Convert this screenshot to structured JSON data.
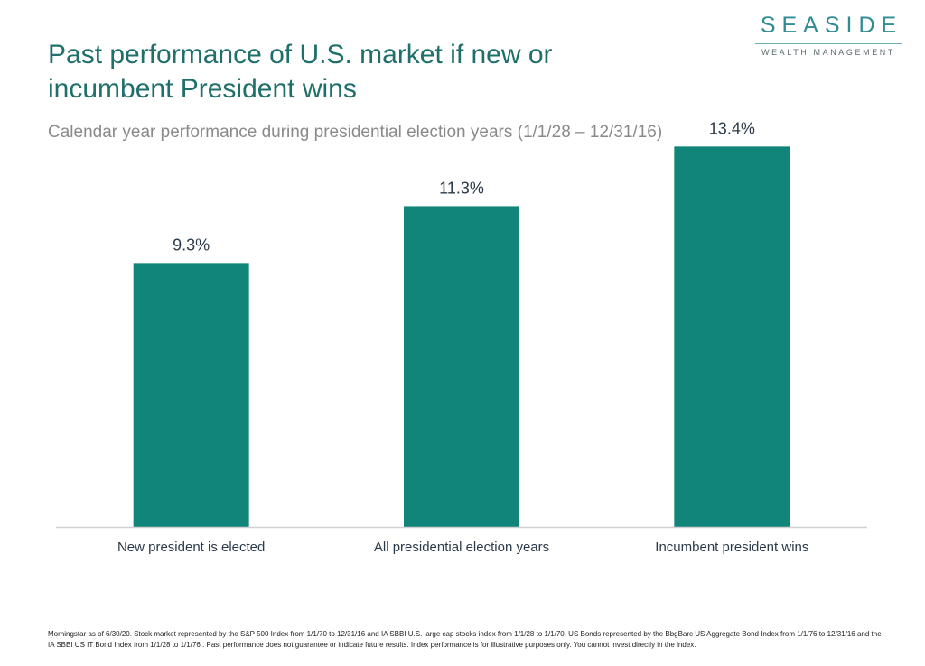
{
  "title": "Past performance of U.S. market if new or incumbent President wins",
  "subtitle": "Calendar year performance during presidential election years (1/1/28 – 12/31/16)",
  "logo": {
    "name": "SEASIDE",
    "tagline": "WEALTH MANAGEMENT"
  },
  "chart_data": {
    "type": "bar",
    "title": "Past performance of U.S. market if new or incumbent President wins",
    "subtitle": "Calendar year performance during presidential election years (1/1/28 – 12/31/16)",
    "categories": [
      "New president is elected",
      "All presidential election years",
      "Incumbent president wins"
    ],
    "values": [
      9.3,
      11.3,
      13.4
    ],
    "data_labels": [
      "9.3%",
      "11.3%",
      "13.4%"
    ],
    "xlabel": "",
    "ylabel": "",
    "ylim": [
      0,
      15
    ],
    "grid": false,
    "legend": "none",
    "bar_color": "#12857a"
  },
  "colors": {
    "title": "#1f6f6b",
    "bar": "#12857a",
    "axis": "#d0d0d0",
    "label": "#2b3a4a"
  },
  "footnote": "Morningstar as of 6/30/20. Stock market represented by the S&P 500 Index from 1/1/70 to 12/31/16 and IA SBBI U.S. large cap stocks index from 1/1/28 to 1/1/70. US Bonds represented by the BbgBarc US Aggregate Bond Index from 1/1/76 to 12/31/16 and the IA SBBI US IT Bond Index from 1/1/28 to 1/1/76 . Past performance does not guarantee or indicate future results. Index performance is for illustrative purposes only. You cannot invest directly in the index."
}
